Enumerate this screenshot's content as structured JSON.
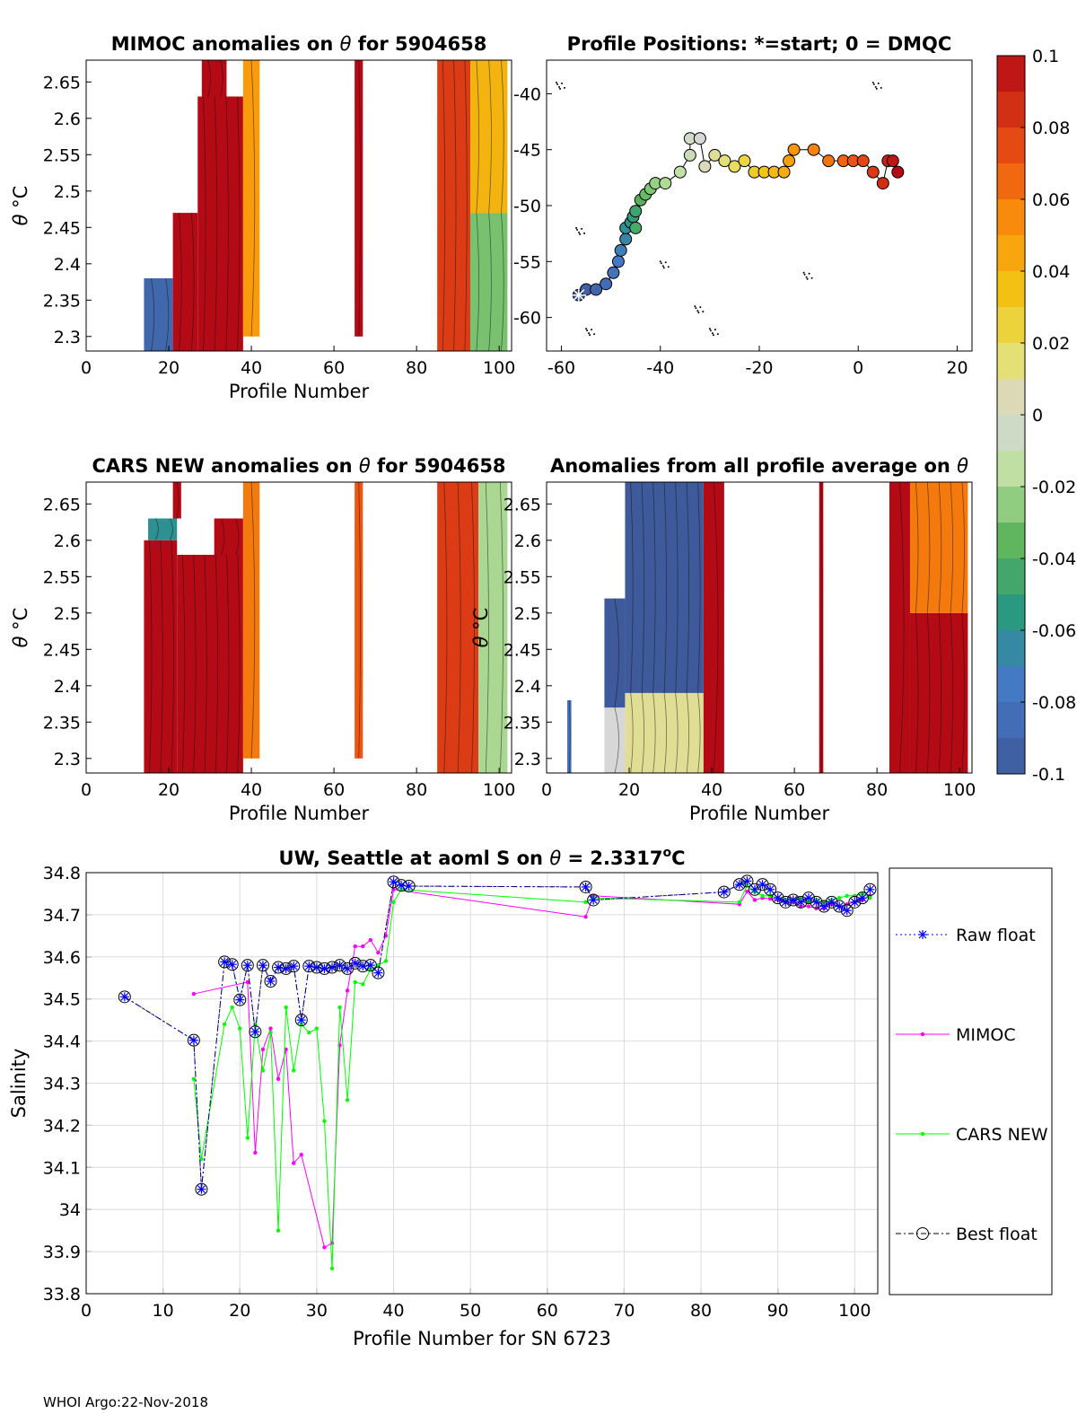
{
  "footer": "WHOI Argo:22-Nov-2018",
  "colors": {
    "raw_float": "#0000ff",
    "mimoc": "#ff00ff",
    "cars_new": "#00ff00",
    "best_float": "#000000",
    "low_anomaly": "#3e5a9a",
    "high_anomaly": "#b40b17"
  },
  "chart_data": [
    {
      "id": "mimoc",
      "type": "heatmap",
      "title_prefix": "MIMOC anomalies on ",
      "title_symbol": "θ",
      "title_suffix": "  for 5904658",
      "xlabel": "Profile Number",
      "ylabel_symbol": "θ",
      "ylabel_unit": "°C",
      "xlim": [
        0,
        103
      ],
      "ylim": [
        2.28,
        2.68
      ],
      "xticks": [
        "0",
        "20",
        "40",
        "60",
        "80",
        "100"
      ],
      "xtick_values": [
        0,
        20,
        40,
        60,
        80,
        100
      ],
      "yticks": [
        "2.65",
        "2.6",
        "2.55",
        "2.5",
        "2.45",
        "2.4",
        "2.35",
        "2.3"
      ],
      "ytick_values": [
        2.65,
        2.6,
        2.55,
        2.5,
        2.45,
        2.4,
        2.35,
        2.3
      ],
      "regions": [
        {
          "x": [
            14,
            21
          ],
          "y": [
            2.28,
            2.38
          ],
          "v": -0.09
        },
        {
          "x": [
            21,
            27
          ],
          "y": [
            2.28,
            2.47
          ],
          "v": 0.1
        },
        {
          "x": [
            27,
            38
          ],
          "y": [
            2.28,
            2.63
          ],
          "v": 0.1
        },
        {
          "x": [
            28,
            34
          ],
          "y": [
            2.63,
            2.68
          ],
          "v": 0.1
        },
        {
          "x": [
            38,
            42
          ],
          "y": [
            2.3,
            2.68
          ],
          "v": 0.05
        },
        {
          "x": [
            65,
            67
          ],
          "y": [
            2.3,
            2.68
          ],
          "v": 0.1
        },
        {
          "x": [
            85,
            93
          ],
          "y": [
            2.28,
            2.68
          ],
          "v": 0.08
        },
        {
          "x": [
            93,
            102
          ],
          "y": [
            2.28,
            2.47
          ],
          "v": -0.03
        },
        {
          "x": [
            93,
            102
          ],
          "y": [
            2.47,
            2.68
          ],
          "v": 0.04
        }
      ]
    },
    {
      "id": "positions",
      "type": "scatter",
      "title": "Profile Positions: *=start; 0 = DMQC",
      "xlim": [
        -63,
        23
      ],
      "ylim": [
        -63,
        -37
      ],
      "xticks": [
        "-60",
        "-40",
        "-20",
        "0",
        "20"
      ],
      "xtick_values": [
        -60,
        -40,
        -20,
        0,
        20
      ],
      "yticks": [
        "-40",
        "-45",
        "-50",
        "-55",
        "-60"
      ],
      "ytick_values": [
        -40,
        -45,
        -50,
        -55,
        -60
      ],
      "start": [
        -56.5,
        -58.0
      ],
      "lon": [
        -56.5,
        -55,
        -53,
        -51,
        -49.5,
        -48.5,
        -48,
        -47,
        -47,
        -46,
        -45.5,
        -45,
        -45,
        -44,
        -43,
        -42,
        -41,
        -39,
        -36,
        -34,
        -34,
        -32,
        -31,
        -29,
        -27,
        -25,
        -23,
        -21,
        -19,
        -17,
        -15,
        -14,
        -13,
        -9,
        -6,
        -3,
        -1,
        1,
        3,
        5,
        6,
        7,
        8
      ],
      "lat": [
        -58.0,
        -57.5,
        -57.5,
        -57,
        -56,
        -55,
        -54,
        -53,
        -52,
        -51.5,
        -51,
        -50.5,
        -52,
        -49.5,
        -49,
        -48.5,
        -48,
        -48,
        -47,
        -45.5,
        -44,
        -44,
        -46.5,
        -45.5,
        -46,
        -46.5,
        -46,
        -47,
        -47,
        -47,
        -47,
        -46,
        -45,
        -45,
        -46,
        -46,
        -46,
        -46,
        -47,
        -48,
        -46,
        -46,
        -47
      ],
      "colorbar": {
        "ticks": [
          "0.1",
          "0.08",
          "0.06",
          "0.04",
          "0.02",
          "0",
          "-0.02",
          "-0.04",
          "-0.06",
          "-0.08",
          "-0.1"
        ],
        "tick_values": [
          0.1,
          0.08,
          0.06,
          0.04,
          0.02,
          0,
          -0.02,
          -0.04,
          -0.06,
          -0.08,
          -0.1
        ],
        "range": [
          -0.1,
          0.1
        ]
      }
    },
    {
      "id": "cars",
      "type": "heatmap",
      "title_prefix": "CARS NEW anomalies on ",
      "title_symbol": "θ",
      "title_suffix": " for 5904658",
      "xlabel": "Profile Number",
      "ylabel_symbol": "θ",
      "ylabel_unit": "°C",
      "xlim": [
        0,
        103
      ],
      "ylim": [
        2.28,
        2.68
      ],
      "xticks": [
        "0",
        "20",
        "40",
        "60",
        "80",
        "100"
      ],
      "xtick_values": [
        0,
        20,
        40,
        60,
        80,
        100
      ],
      "yticks": [
        "2.65",
        "2.6",
        "2.55",
        "2.5",
        "2.45",
        "2.4",
        "2.35",
        "2.3"
      ],
      "ytick_values": [
        2.65,
        2.6,
        2.55,
        2.5,
        2.45,
        2.4,
        2.35,
        2.3
      ],
      "regions": [
        {
          "x": [
            14,
            22
          ],
          "y": [
            2.28,
            2.6
          ],
          "v": 0.1
        },
        {
          "x": [
            15,
            22
          ],
          "y": [
            2.6,
            2.63
          ],
          "v": -0.06
        },
        {
          "x": [
            21,
            23
          ],
          "y": [
            2.63,
            2.68
          ],
          "v": 0.1
        },
        {
          "x": [
            22,
            38
          ],
          "y": [
            2.28,
            2.58
          ],
          "v": 0.1
        },
        {
          "x": [
            31,
            38
          ],
          "y": [
            2.58,
            2.63
          ],
          "v": 0.1
        },
        {
          "x": [
            38,
            42
          ],
          "y": [
            2.3,
            2.68
          ],
          "v": 0.06
        },
        {
          "x": [
            65,
            67
          ],
          "y": [
            2.3,
            2.68
          ],
          "v": 0.07
        },
        {
          "x": [
            85,
            95
          ],
          "y": [
            2.28,
            2.68
          ],
          "v": 0.08
        },
        {
          "x": [
            95,
            102
          ],
          "y": [
            2.28,
            2.68
          ],
          "v": -0.02
        }
      ]
    },
    {
      "id": "avg",
      "type": "heatmap",
      "title_prefix": "Anomalies from all profile average on ",
      "title_symbol": "θ",
      "title_suffix": "",
      "xlabel": "Profile Number",
      "ylabel_symbol": "θ",
      "ylabel_unit": "°C",
      "xlim": [
        0,
        103
      ],
      "ylim": [
        2.28,
        2.68
      ],
      "xticks": [
        "0",
        "20",
        "40",
        "60",
        "80",
        "100"
      ],
      "xtick_values": [
        0,
        20,
        40,
        60,
        80,
        100
      ],
      "yticks": [
        "2.65",
        "2.6",
        "2.55",
        "2.5",
        "2.45",
        "2.4",
        "2.35",
        "2.3"
      ],
      "ytick_values": [
        2.65,
        2.6,
        2.55,
        2.5,
        2.45,
        2.4,
        2.35,
        2.3
      ],
      "regions": [
        {
          "x": [
            5,
            6
          ],
          "y": [
            2.28,
            2.38
          ],
          "v": -0.08
        },
        {
          "x": [
            14,
            19
          ],
          "y": [
            2.28,
            2.37
          ],
          "v": 0.0
        },
        {
          "x": [
            14,
            19
          ],
          "y": [
            2.37,
            2.52
          ],
          "v": -0.1
        },
        {
          "x": [
            19,
            38
          ],
          "y": [
            2.28,
            2.39
          ],
          "v": 0.01
        },
        {
          "x": [
            19,
            38
          ],
          "y": [
            2.39,
            2.68
          ],
          "v": -0.1
        },
        {
          "x": [
            38,
            43
          ],
          "y": [
            2.28,
            2.68
          ],
          "v": 0.1
        },
        {
          "x": [
            66,
            67
          ],
          "y": [
            2.28,
            2.68
          ],
          "v": 0.1
        },
        {
          "x": [
            83,
            88
          ],
          "y": [
            2.28,
            2.68
          ],
          "v": 0.1
        },
        {
          "x": [
            88,
            102
          ],
          "y": [
            2.28,
            2.5
          ],
          "v": 0.1
        },
        {
          "x": [
            88,
            102
          ],
          "y": [
            2.5,
            2.68
          ],
          "v": 0.06
        }
      ]
    },
    {
      "id": "salinity",
      "type": "line",
      "title_prefix": "UW, Seattle at aoml S on ",
      "title_symbol": "θ",
      "title_suffix": " = 2.3317",
      "title_sup": "o",
      "title_unit": "C",
      "xlabel": "Profile Number for SN 6723",
      "ylabel": "Salinity",
      "xlim": [
        0,
        103
      ],
      "ylim": [
        33.8,
        34.8
      ],
      "xticks": [
        "0",
        "10",
        "20",
        "30",
        "40",
        "50",
        "60",
        "70",
        "80",
        "90",
        "100"
      ],
      "xtick_values": [
        0,
        10,
        20,
        30,
        40,
        50,
        60,
        70,
        80,
        90,
        100
      ],
      "yticks": [
        "34.8",
        "34.7",
        "34.6",
        "34.5",
        "34.4",
        "34.3",
        "34.2",
        "34.1",
        "34",
        "33.9",
        "33.8"
      ],
      "ytick_values": [
        34.8,
        34.7,
        34.6,
        34.5,
        34.4,
        34.3,
        34.2,
        34.1,
        34.0,
        33.9,
        33.8
      ],
      "legend": [
        "Raw float",
        "MIMOC",
        "CARS NEW",
        "Best float"
      ],
      "series": [
        {
          "name": "Raw float",
          "x": [
            5,
            14,
            15,
            18,
            19,
            20,
            21,
            22,
            23,
            24,
            25,
            26,
            27,
            28,
            29,
            30,
            31,
            32,
            33,
            34,
            35,
            36,
            37,
            38,
            40,
            41,
            42,
            65,
            66,
            83,
            85,
            86,
            87,
            88,
            89,
            90,
            91,
            92,
            93,
            94,
            95,
            96,
            97,
            98,
            99,
            100,
            101,
            102
          ],
          "y": [
            34.505,
            34.402,
            34.048,
            34.588,
            34.582,
            34.498,
            34.58,
            34.422,
            34.58,
            34.542,
            34.575,
            34.572,
            34.578,
            34.45,
            34.578,
            34.575,
            34.572,
            34.575,
            34.58,
            34.572,
            34.585,
            34.578,
            34.58,
            34.562,
            34.778,
            34.77,
            34.768,
            34.766,
            34.735,
            34.754,
            34.772,
            34.78,
            34.76,
            34.772,
            34.76,
            34.74,
            34.73,
            34.735,
            34.73,
            34.74,
            34.73,
            34.72,
            34.73,
            34.72,
            34.71,
            34.73,
            34.74,
            34.76
          ]
        },
        {
          "name": "MIMOC",
          "x": [
            14,
            21,
            22,
            23,
            24,
            25,
            26,
            27,
            28,
            31,
            32,
            33,
            34,
            35,
            36,
            37,
            38,
            39,
            40,
            65,
            66,
            85,
            86,
            87,
            88,
            89,
            90,
            91,
            92,
            93,
            94,
            95,
            96,
            97,
            98,
            99,
            100,
            101,
            102
          ],
          "y": [
            34.512,
            34.54,
            34.135,
            34.38,
            34.43,
            34.31,
            34.38,
            34.11,
            34.13,
            33.91,
            33.92,
            34.39,
            34.52,
            34.625,
            34.625,
            34.64,
            34.61,
            34.65,
            34.76,
            34.695,
            34.745,
            34.725,
            34.755,
            34.735,
            34.74,
            34.738,
            34.735,
            34.73,
            34.73,
            34.72,
            34.72,
            34.715,
            34.715,
            34.725,
            34.72,
            34.725,
            34.73,
            34.735,
            34.745
          ]
        },
        {
          "name": "CARS NEW",
          "x": [
            14,
            15,
            18,
            19,
            20,
            21,
            22,
            23,
            24,
            25,
            26,
            27,
            28,
            29,
            30,
            31,
            32,
            33,
            34,
            35,
            36,
            37,
            38,
            39,
            40,
            41,
            65,
            66,
            85,
            86,
            87,
            88,
            89,
            90,
            91,
            92,
            93,
            94,
            95,
            96,
            97,
            98,
            99,
            100,
            101,
            102
          ],
          "y": [
            34.31,
            34.12,
            34.44,
            34.48,
            34.43,
            34.17,
            34.44,
            34.33,
            34.42,
            33.95,
            34.48,
            34.33,
            34.44,
            34.42,
            34.43,
            34.21,
            33.86,
            34.48,
            34.26,
            34.54,
            34.535,
            34.57,
            34.58,
            34.59,
            34.73,
            34.76,
            34.73,
            34.74,
            34.73,
            34.77,
            34.755,
            34.745,
            34.745,
            34.74,
            34.735,
            34.735,
            34.74,
            34.73,
            34.735,
            34.73,
            34.735,
            34.74,
            34.745,
            34.745,
            34.75,
            34.74
          ]
        },
        {
          "name": "Best float",
          "x": [
            5,
            14,
            15,
            18,
            19,
            20,
            21,
            22,
            23,
            24,
            25,
            26,
            27,
            28,
            29,
            30,
            31,
            32,
            33,
            34,
            35,
            36,
            37,
            38,
            40,
            41,
            42,
            65,
            66,
            83,
            85,
            86,
            87,
            88,
            89,
            90,
            91,
            92,
            93,
            94,
            95,
            96,
            97,
            98,
            99,
            100,
            101,
            102
          ],
          "y": [
            34.505,
            34.402,
            34.048,
            34.588,
            34.582,
            34.498,
            34.58,
            34.422,
            34.58,
            34.542,
            34.575,
            34.572,
            34.578,
            34.45,
            34.578,
            34.575,
            34.572,
            34.575,
            34.58,
            34.572,
            34.585,
            34.578,
            34.58,
            34.562,
            34.778,
            34.77,
            34.768,
            34.766,
            34.735,
            34.754,
            34.772,
            34.78,
            34.76,
            34.772,
            34.76,
            34.74,
            34.73,
            34.735,
            34.73,
            34.74,
            34.73,
            34.72,
            34.73,
            34.72,
            34.71,
            34.73,
            34.74,
            34.76
          ]
        }
      ]
    }
  ]
}
